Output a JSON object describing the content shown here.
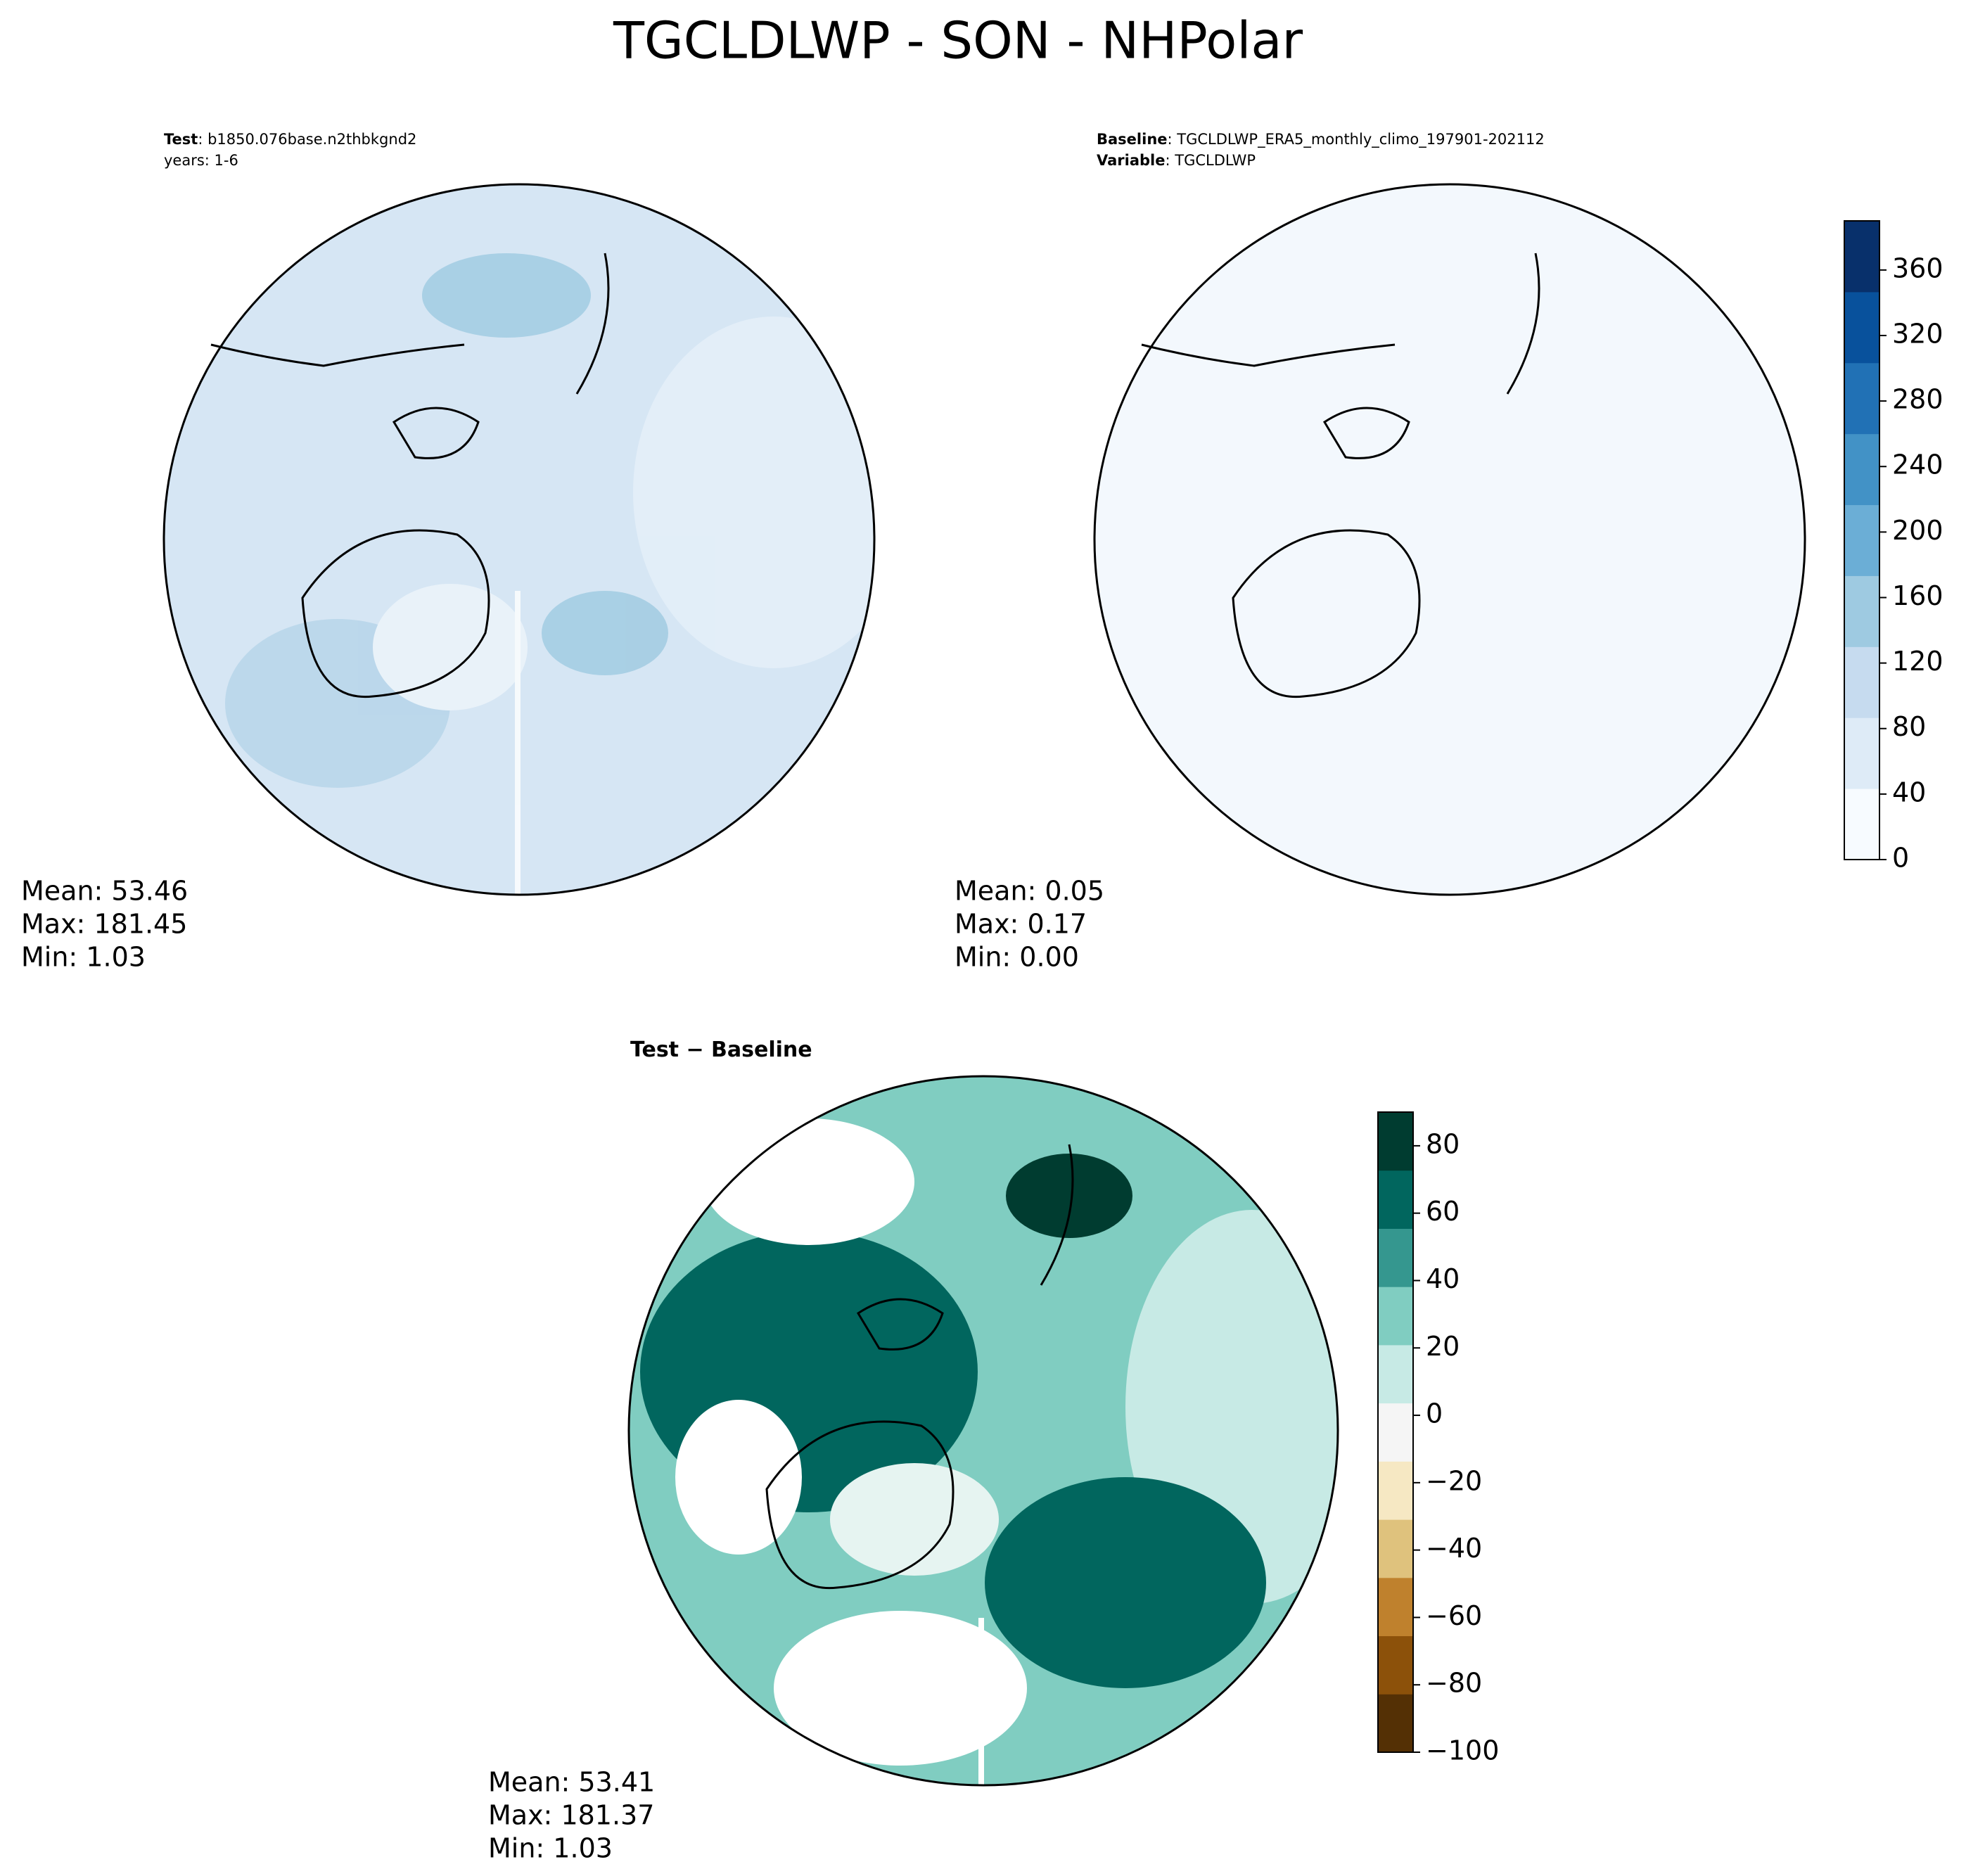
{
  "title": "TGCLDLWP - SON - NHPolar",
  "panels": [
    {
      "header": [
        {
          "label": "Test",
          "text": ": b1850.076base.n2thbkgnd2"
        },
        {
          "label": null,
          "text": "years: 1-6"
        }
      ],
      "stats": [
        "Mean: 53.46",
        "Max: 181.45",
        "Min:  1.03"
      ]
    },
    {
      "header": [
        {
          "label": "Baseline",
          "text": ": TGCLDLWP_ERA5_monthly_climo_197901-202112"
        },
        {
          "label": "Variable",
          "text": ": TGCLDLWP"
        }
      ],
      "stats": [
        "Mean:  0.05",
        "Max:  0.17",
        "Min:  0.00"
      ]
    },
    {
      "header": [
        {
          "label": "Test − Baseline",
          "text": null
        }
      ],
      "stats": [
        "Mean: 53.41",
        "Max: 181.37",
        "Min:  1.03"
      ]
    }
  ],
  "colorbars": [
    {
      "ylim": [
        0,
        390
      ],
      "yticks": [
        0,
        40,
        80,
        120,
        160,
        200,
        240,
        280,
        320,
        360
      ],
      "colors": [
        "#f7fbff",
        "#deebf7",
        "#c6dbef",
        "#9ecae1",
        "#6baed6",
        "#4292c6",
        "#2171b5",
        "#08519c",
        "#08306b"
      ]
    },
    {
      "ylim": [
        -100,
        90
      ],
      "yticks": [
        {
          "value": -100,
          "label": "−100"
        },
        {
          "value": -80,
          "label": "−80"
        },
        {
          "value": -60,
          "label": "−60"
        },
        {
          "value": -40,
          "label": "−40"
        },
        {
          "value": -20,
          "label": "−20"
        },
        0,
        20,
        40,
        60,
        80
      ],
      "colors": [
        "#543005",
        "#8c510a",
        "#bf812d",
        "#dfc27d",
        "#f6e8c3",
        "#f5f5f5",
        "#c7eae5",
        "#80cdc1",
        "#35978f",
        "#01665e",
        "#003c30"
      ]
    }
  ]
}
